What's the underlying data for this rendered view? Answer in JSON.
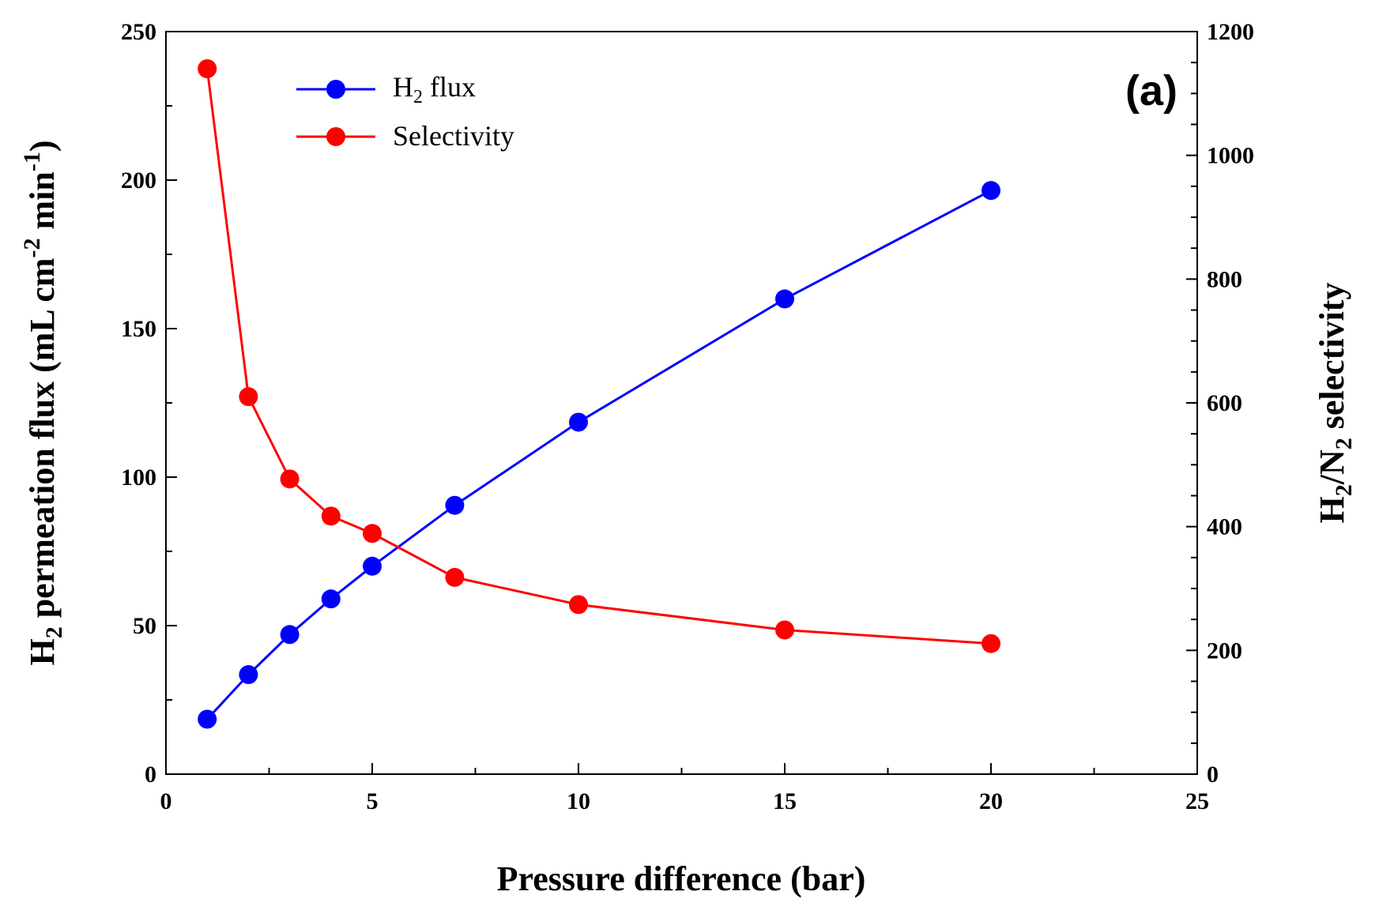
{
  "chart_data": {
    "type": "line",
    "panel_label": "(a)",
    "x": [
      1,
      2,
      3,
      4,
      5,
      7,
      10,
      15,
      20
    ],
    "xlabel": "Pressure difference (bar)",
    "xlim": [
      0,
      25
    ],
    "x_ticks": [
      0,
      5,
      10,
      15,
      20,
      25
    ],
    "ylabel_left": "H2 permeation flux (mL cm-2 min-1)",
    "ylabel_left_parts": {
      "a": "H",
      "b": "2",
      "c": " permeation flux (mL cm",
      "d": "-2",
      "e": " min",
      "f": "-1",
      "g": ")"
    },
    "ylim_left": [
      0,
      250
    ],
    "y_ticks_left": [
      0,
      50,
      100,
      150,
      200,
      250
    ],
    "ylabel_right": "H2/N2 selectivity",
    "ylabel_right_parts": {
      "a": "H",
      "b": "2",
      "c": "/N",
      "d": "2",
      "e": " selectivity"
    },
    "ylim_right": [
      0,
      1200
    ],
    "y_ticks_right": [
      0,
      200,
      400,
      600,
      800,
      1000,
      1200
    ],
    "grid": false,
    "legend_position": "top-left",
    "series": [
      {
        "name": "H2 flux",
        "legend_parts": {
          "a": "H",
          "b": "2",
          "c": " flux"
        },
        "axis": "left",
        "color": "#0000ff",
        "values": [
          18.5,
          33.5,
          47,
          59,
          70,
          90.5,
          118.5,
          160,
          196.5
        ]
      },
      {
        "name": "Selectivity",
        "legend_parts": {
          "a": "Selectivity"
        },
        "axis": "right",
        "color": "#ff0000",
        "values": [
          1140,
          610,
          477,
          417,
          389,
          318,
          274,
          233,
          211
        ]
      }
    ]
  }
}
